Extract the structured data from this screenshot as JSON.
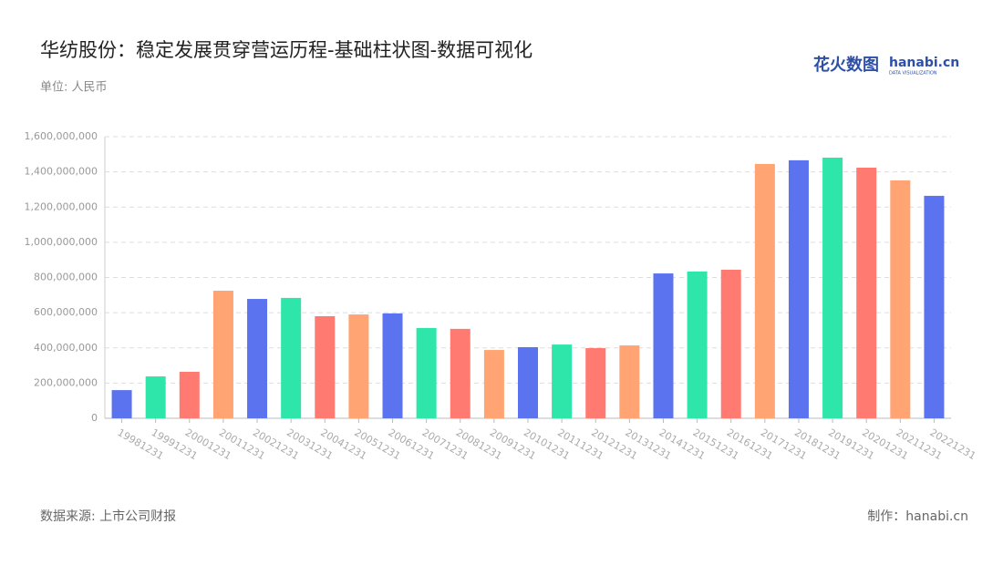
{
  "chart_data": {
    "type": "bar",
    "title": "华纺股份：稳定发展贯穿营运历程-基础柱状图-数据可视化",
    "unit": "单位: 人民币",
    "source": "数据来源: 上市公司财报",
    "credit": "制作：hanabi.cn",
    "logo": {
      "brand": "花火数图",
      "site": "hanabi.cn",
      "tagline": "DATA VISUALIZATION"
    },
    "categories": [
      "19981231",
      "19991231",
      "20001231",
      "20011231",
      "20021231",
      "20031231",
      "20041231",
      "20051231",
      "20061231",
      "20071231",
      "20081231",
      "20091231",
      "20101231",
      "20111231",
      "20121231",
      "20131231",
      "20141231",
      "20151231",
      "20161231",
      "20171231",
      "20181231",
      "20191231",
      "20201231",
      "20211231",
      "20221231"
    ],
    "values": [
      160000000,
      238000000,
      264000000,
      725000000,
      678000000,
      684000000,
      580000000,
      590000000,
      596000000,
      513000000,
      508000000,
      388000000,
      404000000,
      419000000,
      399000000,
      414000000,
      823000000,
      834000000,
      844000000,
      1445000000,
      1466000000,
      1481000000,
      1424000000,
      1352000000,
      1264000000
    ],
    "colors": [
      "#5b73ee",
      "#2ee6aa",
      "#ff7b72",
      "#ffa472"
    ],
    "ylim": [
      0,
      1600000000
    ],
    "yticks": [
      0,
      {
        "value": 200000000,
        "label": "200,000,000"
      },
      {
        "value": 400000000,
        "label": "400,000,000"
      },
      {
        "value": 600000000,
        "label": "600,000,000"
      },
      {
        "value": 800000000,
        "label": "800,000,000"
      },
      {
        "value": 1000000000,
        "label": "1,000,000,000"
      },
      {
        "value": 1200000000,
        "label": "1,200,000,000"
      },
      {
        "value": 1400000000,
        "label": "1,400,000,000"
      },
      {
        "value": 1600000000,
        "label": "1,600,000,000"
      }
    ],
    "grid": true
  }
}
